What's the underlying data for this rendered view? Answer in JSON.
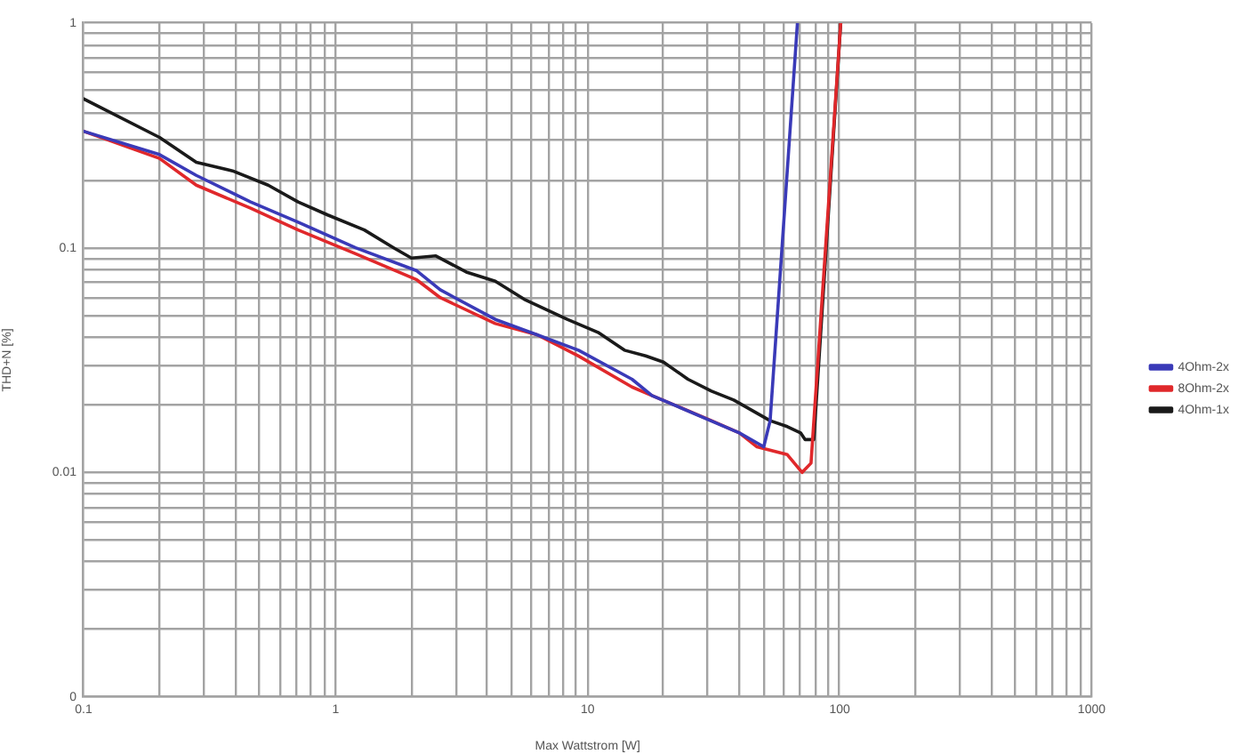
{
  "chart_data": {
    "type": "line",
    "xlabel": "Max Wattstrom [W]",
    "ylabel": "THD+N [%]",
    "log": "xy",
    "grid": true,
    "legend": "right",
    "marker": "none",
    "line_style": "solid",
    "xlim": [
      0.1,
      1000
    ],
    "ylim": [
      0.001,
      1
    ],
    "xticks": [
      0.1,
      {
        "value": 0.2,
        "label": null
      },
      {
        "value": 0.3,
        "label": null
      },
      {
        "value": 0.4,
        "label": null
      },
      {
        "value": 0.5,
        "label": null
      },
      {
        "value": 0.6,
        "label": null
      },
      {
        "value": 0.7,
        "label": null
      },
      {
        "value": 0.8,
        "label": null
      },
      {
        "value": 0.9,
        "label": null
      },
      1,
      {
        "value": 2,
        "label": null
      },
      {
        "value": 3,
        "label": null
      },
      {
        "value": 4,
        "label": null
      },
      {
        "value": 5,
        "label": null
      },
      {
        "value": 6,
        "label": null
      },
      {
        "value": 7,
        "label": null
      },
      {
        "value": 8,
        "label": null
      },
      {
        "value": 9,
        "label": null
      },
      10,
      {
        "value": 20,
        "label": null
      },
      {
        "value": 30,
        "label": null
      },
      {
        "value": 40,
        "label": null
      },
      {
        "value": 50,
        "label": null
      },
      {
        "value": 60,
        "label": null
      },
      {
        "value": 70,
        "label": null
      },
      {
        "value": 80,
        "label": null
      },
      {
        "value": 90,
        "label": null
      },
      100,
      {
        "value": 200,
        "label": null
      },
      {
        "value": 300,
        "label": null
      },
      {
        "value": 400,
        "label": null
      },
      {
        "value": 500,
        "label": null
      },
      {
        "value": 600,
        "label": null
      },
      {
        "value": 700,
        "label": null
      },
      {
        "value": 800,
        "label": null
      },
      {
        "value": 900,
        "label": null
      },
      1000
    ],
    "yticks": [
      {
        "value": 0.001,
        "label": "0"
      },
      {
        "value": 0.002,
        "label": null
      },
      {
        "value": 0.003,
        "label": null
      },
      {
        "value": 0.004,
        "label": null
      },
      {
        "value": 0.005,
        "label": null
      },
      {
        "value": 0.006,
        "label": null
      },
      {
        "value": 0.007,
        "label": null
      },
      {
        "value": 0.008,
        "label": null
      },
      {
        "value": 0.009,
        "label": null
      },
      0.01,
      {
        "value": 0.02,
        "label": null
      },
      {
        "value": 0.03,
        "label": null
      },
      {
        "value": 0.04,
        "label": null
      },
      {
        "value": 0.05,
        "label": null
      },
      {
        "value": 0.06,
        "label": null
      },
      {
        "value": 0.07,
        "label": null
      },
      {
        "value": 0.08,
        "label": null
      },
      {
        "value": 0.09,
        "label": null
      },
      0.1,
      {
        "value": 0.2,
        "label": null
      },
      {
        "value": 0.3,
        "label": null
      },
      {
        "value": 0.4,
        "label": null
      },
      {
        "value": 0.5,
        "label": null
      },
      {
        "value": 0.6,
        "label": null
      },
      {
        "value": 0.7,
        "label": null
      },
      {
        "value": 0.8,
        "label": null
      },
      {
        "value": 0.9,
        "label": null
      },
      1
    ],
    "series": [
      {
        "name": "4Ohm-2x",
        "color": "#3a3ab8",
        "x": [
          0.1,
          0.2,
          0.28,
          0.46,
          0.71,
          1.2,
          2.1,
          2.6,
          4.3,
          6.3,
          9.2,
          15,
          18,
          40,
          50,
          53,
          68
        ],
        "values": [
          0.33,
          0.26,
          0.21,
          0.16,
          0.13,
          0.1,
          0.079,
          0.065,
          0.048,
          0.041,
          0.035,
          0.026,
          0.022,
          0.015,
          0.013,
          0.017,
          1
        ]
      },
      {
        "name": "8Ohm-2x",
        "color": "#e0282b",
        "x": [
          0.1,
          0.2,
          0.28,
          0.46,
          0.71,
          1.2,
          2.1,
          2.6,
          4.3,
          6.3,
          9.2,
          15,
          18,
          31,
          40,
          47,
          62,
          71,
          77,
          101
        ],
        "values": [
          0.33,
          0.25,
          0.19,
          0.15,
          0.12,
          0.094,
          0.072,
          0.06,
          0.046,
          0.041,
          0.033,
          0.024,
          0.022,
          0.017,
          0.015,
          0.013,
          0.012,
          0.01,
          0.011,
          1
        ]
      },
      {
        "name": "4Ohm-1x",
        "color": "#1a1a1a",
        "x": [
          0.1,
          0.2,
          0.28,
          0.39,
          0.54,
          0.71,
          0.93,
          1.3,
          1.7,
          2.0,
          2.5,
          3.3,
          4.3,
          5.6,
          8.3,
          11,
          14,
          17,
          20,
          25,
          31,
          38,
          53,
          62,
          70,
          73,
          79,
          101
        ],
        "values": [
          0.46,
          0.31,
          0.24,
          0.22,
          0.19,
          0.16,
          0.14,
          0.12,
          0.1,
          0.09,
          0.092,
          0.078,
          0.071,
          0.059,
          0.048,
          0.042,
          0.035,
          0.033,
          0.031,
          0.026,
          0.023,
          0.021,
          0.017,
          0.016,
          0.015,
          0.014,
          0.014,
          1
        ]
      }
    ]
  }
}
